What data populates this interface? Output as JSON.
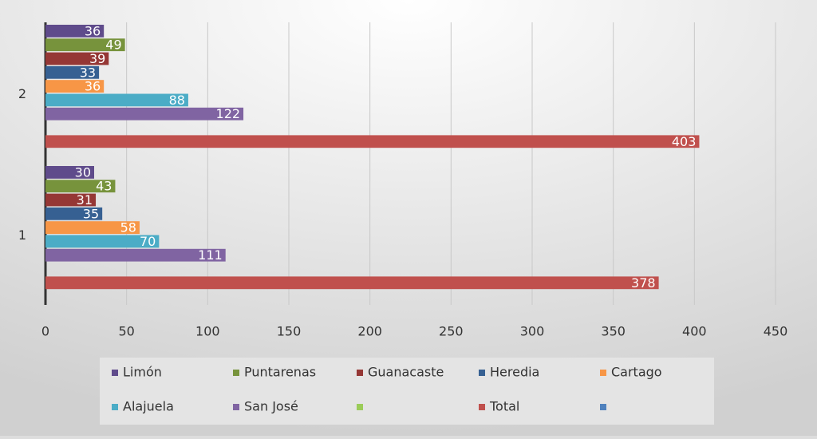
{
  "chart_data": {
    "type": "hbar",
    "categories": [
      "1",
      "2"
    ],
    "series": [
      {
        "name": "Limón",
        "color": "#5f4b8b",
        "values": [
          30,
          36
        ]
      },
      {
        "name": "Puntarenas",
        "color": "#77933c",
        "values": [
          43,
          49
        ]
      },
      {
        "name": "Guanacaste",
        "color": "#953735",
        "values": [
          31,
          39
        ]
      },
      {
        "name": "Heredia",
        "color": "#366092",
        "values": [
          35,
          33
        ]
      },
      {
        "name": "Cartago",
        "color": "#f79646",
        "values": [
          58,
          36
        ]
      },
      {
        "name": "Alajuela",
        "color": "#4bacc6",
        "values": [
          70,
          88
        ]
      },
      {
        "name": "San José",
        "color": "#8064a2",
        "values": [
          111,
          122
        ]
      },
      {
        "name": null,
        "color": "#9bcc59",
        "values": [
          null,
          null
        ]
      },
      {
        "name": "Total",
        "color": "#c0504d",
        "values": [
          378,
          403
        ]
      },
      {
        "name": null,
        "color": "#4f81bd",
        "values": [
          null,
          null
        ]
      }
    ],
    "xlim": [
      0,
      450
    ],
    "xticks": [
      0,
      50,
      100,
      150,
      200,
      250,
      300,
      350,
      400,
      450
    ],
    "grid": true,
    "data_labels": true,
    "legend": "bottom"
  }
}
